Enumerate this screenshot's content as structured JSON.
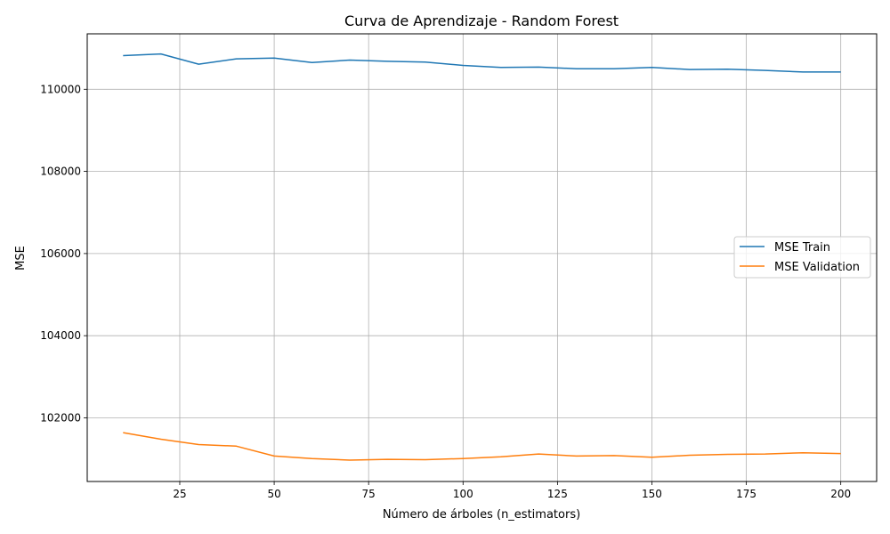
{
  "chart_data": {
    "type": "line",
    "title": "Curva de Aprendizaje - Random Forest",
    "xlabel": "Número de árboles (n_estimators)",
    "ylabel": "MSE",
    "xlim": [
      0.5,
      209.5
    ],
    "ylim": [
      100450,
      111350
    ],
    "xticks": [
      25,
      50,
      75,
      100,
      125,
      150,
      175,
      200
    ],
    "yticks": [
      102000,
      104000,
      106000,
      108000,
      110000
    ],
    "grid": true,
    "legend_position": "center-right",
    "x": [
      10,
      20,
      30,
      40,
      50,
      60,
      70,
      80,
      90,
      100,
      110,
      120,
      130,
      140,
      150,
      160,
      170,
      180,
      190,
      200
    ],
    "series": [
      {
        "name": "MSE Train",
        "color": "#1f77b4",
        "values": [
          110820,
          110860,
          110610,
          110740,
          110760,
          110650,
          110710,
          110680,
          110660,
          110580,
          110530,
          110540,
          110500,
          110500,
          110530,
          110480,
          110490,
          110460,
          110420,
          110420
        ]
      },
      {
        "name": "MSE Validation",
        "color": "#ff7f0e",
        "values": [
          101640,
          101480,
          101350,
          101310,
          101070,
          101010,
          100970,
          100990,
          100980,
          101010,
          101050,
          101120,
          101070,
          101080,
          101040,
          101090,
          101110,
          101120,
          101150,
          101130
        ]
      }
    ]
  }
}
